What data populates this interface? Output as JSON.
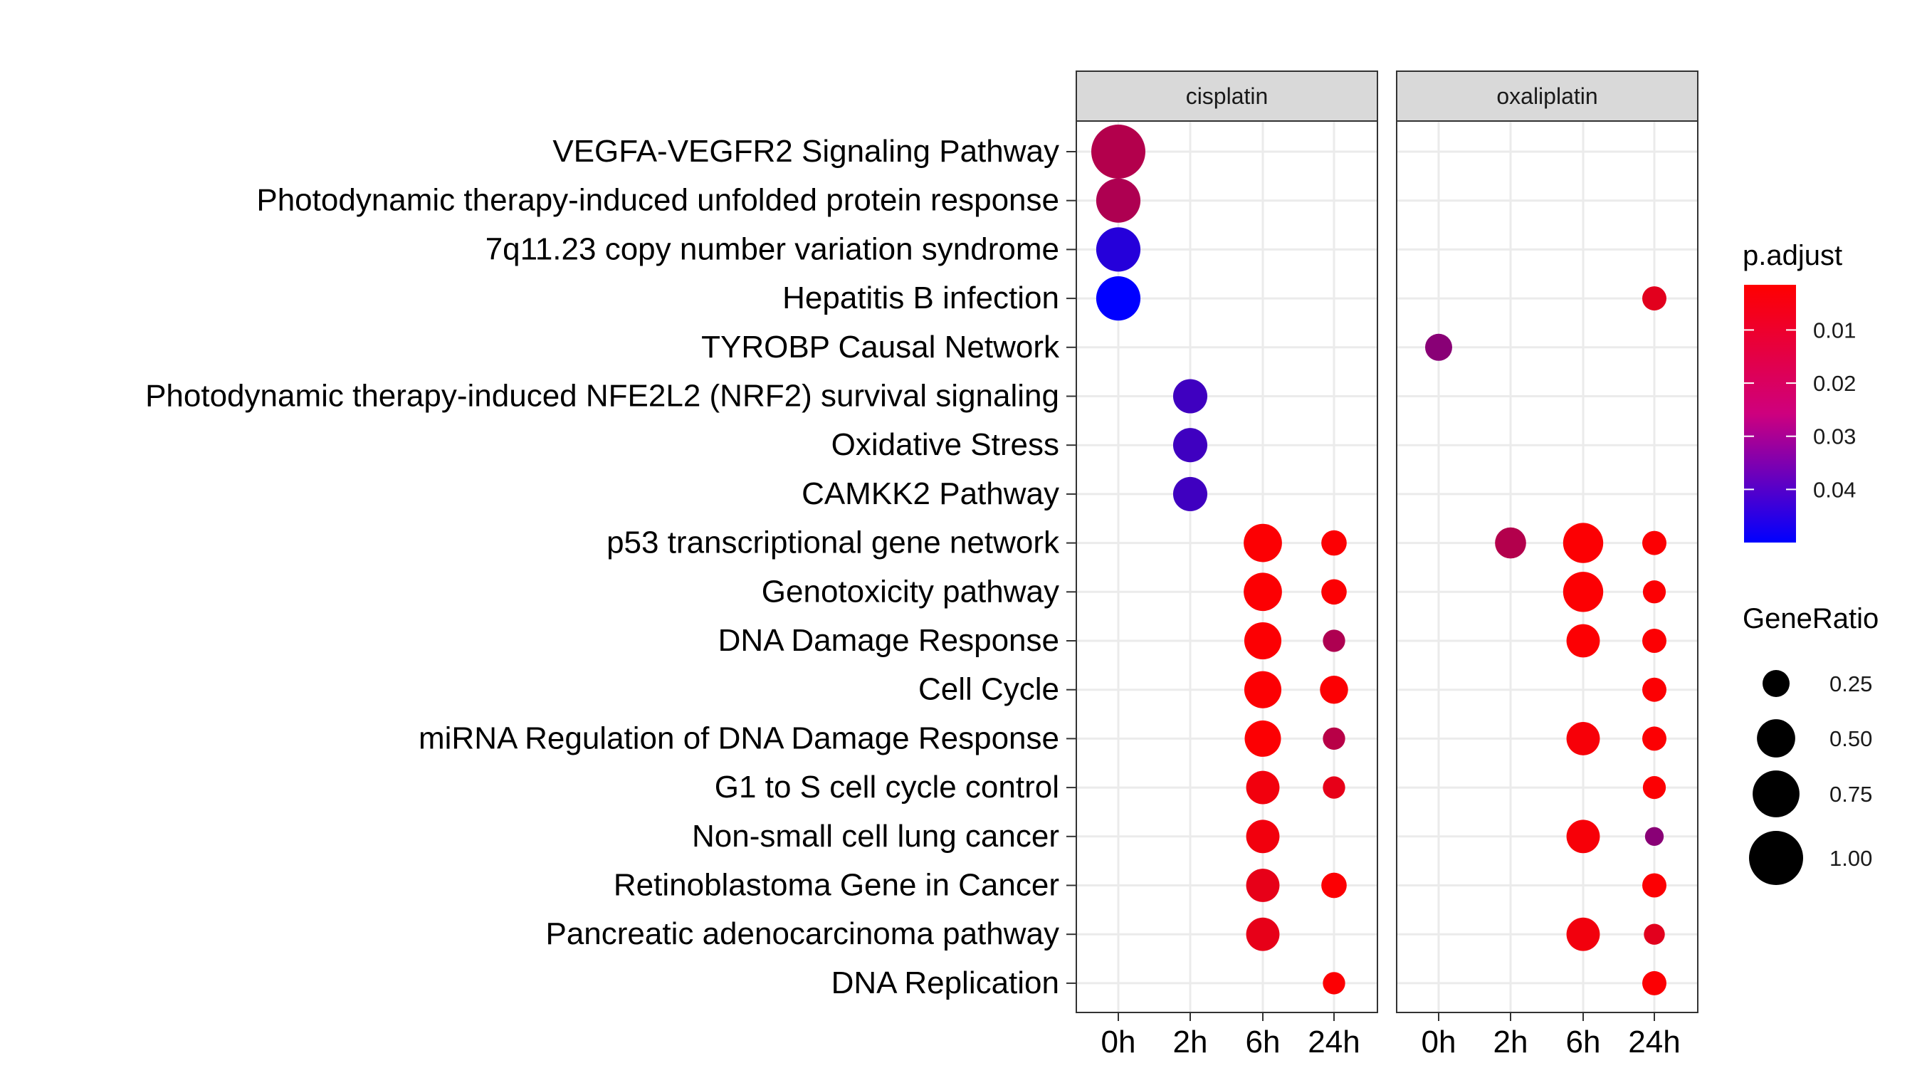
{
  "chart_data": {
    "type": "scatter",
    "panels": [
      "cisplatin",
      "oxaliplatin"
    ],
    "x_categories": [
      "0h",
      "2h",
      "6h",
      "24h"
    ],
    "y_categories": [
      "VEGFA-VEGFR2 Signaling Pathway",
      "Photodynamic therapy-induced unfolded protein response",
      "7q11.23 copy number variation syndrome",
      "Hepatitis B infection",
      "TYROBP Causal Network",
      "Photodynamic therapy-induced NFE2L2 (NRF2) survival signaling",
      "Oxidative Stress",
      "CAMKK2  Pathway",
      "p53 transcriptional gene network",
      "Genotoxicity pathway",
      "DNA Damage Response",
      "Cell Cycle",
      "miRNA Regulation of DNA Damage Response",
      "G1 to S cell cycle control",
      "Non-small cell lung cancer",
      "Retinoblastoma Gene in Cancer",
      "Pancreatic adenocarcinoma pathway",
      "DNA Replication"
    ],
    "points": [
      {
        "panel": "cisplatin",
        "x": "0h",
        "y": "VEGFA-VEGFR2 Signaling Pathway",
        "gene_ratio": 1.0,
        "p_adjust": 0.016
      },
      {
        "panel": "cisplatin",
        "x": "0h",
        "y": "Photodynamic therapy-induced unfolded protein response",
        "gene_ratio": 0.67,
        "p_adjust": 0.017
      },
      {
        "panel": "cisplatin",
        "x": "0h",
        "y": "7q11.23 copy number variation syndrome",
        "gene_ratio": 0.67,
        "p_adjust": 0.043
      },
      {
        "panel": "cisplatin",
        "x": "0h",
        "y": "Hepatitis B infection",
        "gene_ratio": 0.67,
        "p_adjust": 0.05
      },
      {
        "panel": "cisplatin",
        "x": "2h",
        "y": "Photodynamic therapy-induced NFE2L2 (NRF2) survival signaling",
        "gene_ratio": 0.4,
        "p_adjust": 0.038
      },
      {
        "panel": "cisplatin",
        "x": "2h",
        "y": "Oxidative Stress",
        "gene_ratio": 0.4,
        "p_adjust": 0.038
      },
      {
        "panel": "cisplatin",
        "x": "2h",
        "y": "CAMKK2  Pathway",
        "gene_ratio": 0.4,
        "p_adjust": 0.038
      },
      {
        "panel": "cisplatin",
        "x": "6h",
        "y": "p53 transcriptional gene network",
        "gene_ratio": 0.5,
        "p_adjust": 0.002
      },
      {
        "panel": "cisplatin",
        "x": "6h",
        "y": "Genotoxicity pathway",
        "gene_ratio": 0.5,
        "p_adjust": 0.002
      },
      {
        "panel": "cisplatin",
        "x": "6h",
        "y": "DNA Damage Response",
        "gene_ratio": 0.47,
        "p_adjust": 0.002
      },
      {
        "panel": "cisplatin",
        "x": "6h",
        "y": "Cell Cycle",
        "gene_ratio": 0.47,
        "p_adjust": 0.002
      },
      {
        "panel": "cisplatin",
        "x": "6h",
        "y": "miRNA Regulation of DNA Damage Response",
        "gene_ratio": 0.45,
        "p_adjust": 0.002
      },
      {
        "panel": "cisplatin",
        "x": "6h",
        "y": "G1 to S cell cycle control",
        "gene_ratio": 0.38,
        "p_adjust": 0.004
      },
      {
        "panel": "cisplatin",
        "x": "6h",
        "y": "Non-small cell lung cancer",
        "gene_ratio": 0.38,
        "p_adjust": 0.004
      },
      {
        "panel": "cisplatin",
        "x": "6h",
        "y": "Retinoblastoma Gene in Cancer",
        "gene_ratio": 0.38,
        "p_adjust": 0.006
      },
      {
        "panel": "cisplatin",
        "x": "6h",
        "y": "Pancreatic adenocarcinoma pathway",
        "gene_ratio": 0.38,
        "p_adjust": 0.006
      },
      {
        "panel": "cisplatin",
        "x": "24h",
        "y": "p53 transcriptional gene network",
        "gene_ratio": 0.22,
        "p_adjust": 0.002
      },
      {
        "panel": "cisplatin",
        "x": "24h",
        "y": "Genotoxicity pathway",
        "gene_ratio": 0.22,
        "p_adjust": 0.002
      },
      {
        "panel": "cisplatin",
        "x": "24h",
        "y": "DNA Damage Response",
        "gene_ratio": 0.17,
        "p_adjust": 0.017
      },
      {
        "panel": "cisplatin",
        "x": "24h",
        "y": "Cell Cycle",
        "gene_ratio": 0.27,
        "p_adjust": 0.002
      },
      {
        "panel": "cisplatin",
        "x": "24h",
        "y": "miRNA Regulation of DNA Damage Response",
        "gene_ratio": 0.17,
        "p_adjust": 0.015
      },
      {
        "panel": "cisplatin",
        "x": "24h",
        "y": "G1 to S cell cycle control",
        "gene_ratio": 0.17,
        "p_adjust": 0.006
      },
      {
        "panel": "cisplatin",
        "x": "24h",
        "y": "Retinoblastoma Gene in Cancer",
        "gene_ratio": 0.22,
        "p_adjust": 0.002
      },
      {
        "panel": "cisplatin",
        "x": "24h",
        "y": "DNA Replication",
        "gene_ratio": 0.17,
        "p_adjust": 0.002
      },
      {
        "panel": "oxaliplatin",
        "x": "0h",
        "y": "TYROBP Causal Network",
        "gene_ratio": 0.25,
        "p_adjust": 0.024
      },
      {
        "panel": "oxaliplatin",
        "x": "2h",
        "y": "p53 transcriptional gene network",
        "gene_ratio": 0.33,
        "p_adjust": 0.016
      },
      {
        "panel": "oxaliplatin",
        "x": "6h",
        "y": "p53 transcriptional gene network",
        "gene_ratio": 0.55,
        "p_adjust": 0.002
      },
      {
        "panel": "oxaliplatin",
        "x": "6h",
        "y": "Genotoxicity pathway",
        "gene_ratio": 0.55,
        "p_adjust": 0.002
      },
      {
        "panel": "oxaliplatin",
        "x": "6h",
        "y": "DNA Damage Response",
        "gene_ratio": 0.38,
        "p_adjust": 0.002
      },
      {
        "panel": "oxaliplatin",
        "x": "6h",
        "y": "miRNA Regulation of DNA Damage Response",
        "gene_ratio": 0.38,
        "p_adjust": 0.003
      },
      {
        "panel": "oxaliplatin",
        "x": "6h",
        "y": "Non-small cell lung cancer",
        "gene_ratio": 0.38,
        "p_adjust": 0.003
      },
      {
        "panel": "oxaliplatin",
        "x": "6h",
        "y": "Pancreatic adenocarcinoma pathway",
        "gene_ratio": 0.38,
        "p_adjust": 0.004
      },
      {
        "panel": "oxaliplatin",
        "x": "24h",
        "y": "Hepatitis B infection",
        "gene_ratio": 0.2,
        "p_adjust": 0.007
      },
      {
        "panel": "oxaliplatin",
        "x": "24h",
        "y": "p53 transcriptional gene network",
        "gene_ratio": 0.2,
        "p_adjust": 0.002
      },
      {
        "panel": "oxaliplatin",
        "x": "24h",
        "y": "Genotoxicity pathway",
        "gene_ratio": 0.18,
        "p_adjust": 0.002
      },
      {
        "panel": "oxaliplatin",
        "x": "24h",
        "y": "DNA Damage Response",
        "gene_ratio": 0.2,
        "p_adjust": 0.002
      },
      {
        "panel": "oxaliplatin",
        "x": "24h",
        "y": "Cell Cycle",
        "gene_ratio": 0.2,
        "p_adjust": 0.002
      },
      {
        "panel": "oxaliplatin",
        "x": "24h",
        "y": "miRNA Regulation of DNA Damage Response",
        "gene_ratio": 0.2,
        "p_adjust": 0.002
      },
      {
        "panel": "oxaliplatin",
        "x": "24h",
        "y": "G1 to S cell cycle control",
        "gene_ratio": 0.18,
        "p_adjust": 0.002
      },
      {
        "panel": "oxaliplatin",
        "x": "24h",
        "y": "Non-small cell lung cancer",
        "gene_ratio": 0.12,
        "p_adjust": 0.024
      },
      {
        "panel": "oxaliplatin",
        "x": "24h",
        "y": "Retinoblastoma Gene in Cancer",
        "gene_ratio": 0.2,
        "p_adjust": 0.002
      },
      {
        "panel": "oxaliplatin",
        "x": "24h",
        "y": "Pancreatic adenocarcinoma pathway",
        "gene_ratio": 0.15,
        "p_adjust": 0.007
      },
      {
        "panel": "oxaliplatin",
        "x": "24h",
        "y": "DNA Replication",
        "gene_ratio": 0.2,
        "p_adjust": 0.002
      }
    ],
    "color_legend": {
      "title": "p.adjust",
      "ticks": [
        "0.01",
        "0.02",
        "0.03",
        "0.04"
      ],
      "tick_values": [
        0.01,
        0.02,
        0.03,
        0.04
      ],
      "range": [
        0.0015,
        0.05
      ],
      "low_color": "#ff0000",
      "high_color": "#0000ff"
    },
    "size_legend": {
      "title": "GeneRatio",
      "labels": [
        "0.25",
        "0.50",
        "0.75",
        "1.00"
      ],
      "values": [
        0.25,
        0.5,
        0.75,
        1.0
      ]
    },
    "grid": true,
    "legend_position": "right"
  }
}
